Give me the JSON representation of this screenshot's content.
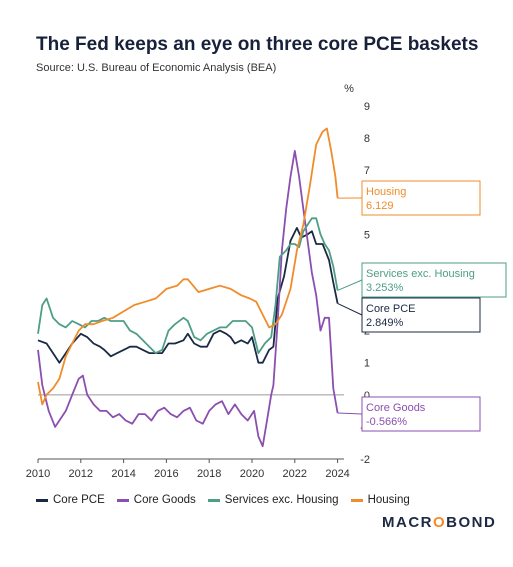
{
  "title": "The Fed keeps an eye on three core PCE baskets",
  "subtitle": "Source: U.S. Bureau of Economic Analysis (BEA)",
  "brand": {
    "pre": "MACR",
    "o": "O",
    "post": "BOND"
  },
  "colors": {
    "core_pce": "#1b2a44",
    "core_goods": "#8a4fb0",
    "services_ex_housing": "#4e9e86",
    "housing": "#f08c2a"
  },
  "chart_data": {
    "type": "line",
    "xlabel": "",
    "ylabel": "%",
    "xlim": [
      2010,
      2024.3
    ],
    "ylim": [
      -2,
      9
    ],
    "xticks": [
      2010,
      2012,
      2014,
      2016,
      2018,
      2020,
      2022,
      2024
    ],
    "yticks": [
      -2,
      -1,
      0,
      1,
      2,
      3,
      4,
      5,
      6,
      7,
      8,
      9
    ],
    "grid": false,
    "legend_position": "bottom",
    "series": [
      {
        "name": "Core PCE",
        "color_key": "core_pce",
        "end_label": "Core PCE",
        "end_value": "2.849%",
        "points": [
          [
            2010.0,
            1.7
          ],
          [
            2010.4,
            1.6
          ],
          [
            2010.8,
            1.2
          ],
          [
            2011.0,
            1.0
          ],
          [
            2011.3,
            1.3
          ],
          [
            2011.6,
            1.6
          ],
          [
            2012.0,
            1.9
          ],
          [
            2012.3,
            1.8
          ],
          [
            2012.6,
            1.6
          ],
          [
            2012.9,
            1.5
          ],
          [
            2013.1,
            1.4
          ],
          [
            2013.4,
            1.2
          ],
          [
            2013.7,
            1.3
          ],
          [
            2014.0,
            1.4
          ],
          [
            2014.3,
            1.5
          ],
          [
            2014.6,
            1.5
          ],
          [
            2014.9,
            1.4
          ],
          [
            2015.2,
            1.3
          ],
          [
            2015.5,
            1.3
          ],
          [
            2015.8,
            1.3
          ],
          [
            2016.1,
            1.6
          ],
          [
            2016.4,
            1.6
          ],
          [
            2016.8,
            1.7
          ],
          [
            2017.0,
            1.9
          ],
          [
            2017.3,
            1.6
          ],
          [
            2017.6,
            1.5
          ],
          [
            2017.9,
            1.5
          ],
          [
            2018.2,
            1.9
          ],
          [
            2018.5,
            2.0
          ],
          [
            2018.8,
            1.9
          ],
          [
            2019.0,
            1.8
          ],
          [
            2019.2,
            1.6
          ],
          [
            2019.5,
            1.7
          ],
          [
            2019.8,
            1.6
          ],
          [
            2020.0,
            1.8
          ],
          [
            2020.3,
            1.0
          ],
          [
            2020.5,
            1.0
          ],
          [
            2020.8,
            1.4
          ],
          [
            2021.0,
            1.5
          ],
          [
            2021.2,
            3.0
          ],
          [
            2021.5,
            3.7
          ],
          [
            2021.8,
            4.8
          ],
          [
            2022.1,
            5.2
          ],
          [
            2022.3,
            4.9
          ],
          [
            2022.6,
            5.0
          ],
          [
            2022.8,
            5.1
          ],
          [
            2023.0,
            4.7
          ],
          [
            2023.3,
            4.7
          ],
          [
            2023.6,
            4.2
          ],
          [
            2023.8,
            3.5
          ],
          [
            2024.0,
            2.849
          ]
        ]
      },
      {
        "name": "Core Goods",
        "color_key": "core_goods",
        "end_label": "Core Goods",
        "end_value": "-0.566%",
        "points": [
          [
            2010.0,
            1.4
          ],
          [
            2010.2,
            0.3
          ],
          [
            2010.5,
            -0.5
          ],
          [
            2010.8,
            -1.0
          ],
          [
            2011.0,
            -0.8
          ],
          [
            2011.3,
            -0.5
          ],
          [
            2011.6,
            0.0
          ],
          [
            2011.9,
            0.5
          ],
          [
            2012.1,
            0.6
          ],
          [
            2012.3,
            0.0
          ],
          [
            2012.6,
            -0.3
          ],
          [
            2012.9,
            -0.5
          ],
          [
            2013.2,
            -0.5
          ],
          [
            2013.5,
            -0.7
          ],
          [
            2013.8,
            -0.6
          ],
          [
            2014.1,
            -0.8
          ],
          [
            2014.4,
            -0.9
          ],
          [
            2014.7,
            -0.6
          ],
          [
            2015.0,
            -0.6
          ],
          [
            2015.3,
            -0.8
          ],
          [
            2015.6,
            -0.5
          ],
          [
            2015.9,
            -0.4
          ],
          [
            2016.2,
            -0.6
          ],
          [
            2016.5,
            -0.7
          ],
          [
            2016.8,
            -0.5
          ],
          [
            2017.1,
            -0.4
          ],
          [
            2017.4,
            -0.8
          ],
          [
            2017.7,
            -0.9
          ],
          [
            2018.0,
            -0.5
          ],
          [
            2018.3,
            -0.3
          ],
          [
            2018.6,
            -0.2
          ],
          [
            2018.9,
            -0.6
          ],
          [
            2019.2,
            -0.3
          ],
          [
            2019.5,
            -0.6
          ],
          [
            2019.8,
            -0.8
          ],
          [
            2020.1,
            -0.5
          ],
          [
            2020.3,
            -1.3
          ],
          [
            2020.5,
            -1.6
          ],
          [
            2020.7,
            -0.8
          ],
          [
            2020.9,
            0.0
          ],
          [
            2021.0,
            0.3
          ],
          [
            2021.2,
            2.3
          ],
          [
            2021.4,
            4.5
          ],
          [
            2021.6,
            5.8
          ],
          [
            2021.8,
            6.8
          ],
          [
            2022.0,
            7.6
          ],
          [
            2022.2,
            6.8
          ],
          [
            2022.4,
            5.8
          ],
          [
            2022.6,
            4.8
          ],
          [
            2022.8,
            3.8
          ],
          [
            2023.0,
            3.1
          ],
          [
            2023.2,
            2.0
          ],
          [
            2023.4,
            2.4
          ],
          [
            2023.6,
            2.4
          ],
          [
            2023.8,
            0.2
          ],
          [
            2024.0,
            -0.566
          ]
        ]
      },
      {
        "name": "Services exc. Housing",
        "color_key": "services_ex_housing",
        "end_label": "Services exc. Housing",
        "end_value": "3.253%",
        "points": [
          [
            2010.0,
            1.9
          ],
          [
            2010.2,
            2.8
          ],
          [
            2010.4,
            3.0
          ],
          [
            2010.7,
            2.4
          ],
          [
            2011.0,
            2.2
          ],
          [
            2011.3,
            2.1
          ],
          [
            2011.6,
            2.3
          ],
          [
            2011.9,
            2.2
          ],
          [
            2012.2,
            2.1
          ],
          [
            2012.5,
            2.3
          ],
          [
            2012.8,
            2.3
          ],
          [
            2013.1,
            2.4
          ],
          [
            2013.4,
            2.3
          ],
          [
            2013.7,
            2.3
          ],
          [
            2014.0,
            2.3
          ],
          [
            2014.3,
            2.0
          ],
          [
            2014.6,
            1.9
          ],
          [
            2014.9,
            1.7
          ],
          [
            2015.2,
            1.5
          ],
          [
            2015.5,
            1.3
          ],
          [
            2015.8,
            1.4
          ],
          [
            2016.1,
            2.0
          ],
          [
            2016.4,
            2.2
          ],
          [
            2016.8,
            2.4
          ],
          [
            2017.0,
            2.3
          ],
          [
            2017.3,
            1.8
          ],
          [
            2017.6,
            1.7
          ],
          [
            2017.9,
            1.9
          ],
          [
            2018.2,
            2.0
          ],
          [
            2018.5,
            2.1
          ],
          [
            2018.8,
            2.1
          ],
          [
            2019.1,
            2.3
          ],
          [
            2019.4,
            2.3
          ],
          [
            2019.7,
            2.3
          ],
          [
            2020.0,
            2.1
          ],
          [
            2020.3,
            1.3
          ],
          [
            2020.6,
            1.6
          ],
          [
            2020.9,
            1.8
          ],
          [
            2021.1,
            2.8
          ],
          [
            2021.3,
            4.3
          ],
          [
            2021.6,
            4.5
          ],
          [
            2021.8,
            4.7
          ],
          [
            2022.0,
            4.7
          ],
          [
            2022.2,
            4.6
          ],
          [
            2022.4,
            5.1
          ],
          [
            2022.6,
            5.3
          ],
          [
            2022.8,
            5.5
          ],
          [
            2023.0,
            5.5
          ],
          [
            2023.2,
            5.0
          ],
          [
            2023.4,
            4.7
          ],
          [
            2023.6,
            4.5
          ],
          [
            2023.8,
            4.0
          ],
          [
            2024.0,
            3.253
          ]
        ]
      },
      {
        "name": "Housing",
        "color_key": "housing",
        "end_label": "Housing",
        "end_value": "6.129",
        "points": [
          [
            2010.0,
            0.4
          ],
          [
            2010.2,
            -0.3
          ],
          [
            2010.4,
            0.0
          ],
          [
            2010.7,
            0.2
          ],
          [
            2011.0,
            0.5
          ],
          [
            2011.3,
            1.2
          ],
          [
            2011.6,
            1.6
          ],
          [
            2011.9,
            2.0
          ],
          [
            2012.2,
            2.2
          ],
          [
            2012.6,
            2.2
          ],
          [
            2013.0,
            2.3
          ],
          [
            2013.5,
            2.4
          ],
          [
            2014.0,
            2.6
          ],
          [
            2014.5,
            2.8
          ],
          [
            2015.0,
            2.9
          ],
          [
            2015.5,
            3.0
          ],
          [
            2016.0,
            3.3
          ],
          [
            2016.5,
            3.4
          ],
          [
            2016.8,
            3.6
          ],
          [
            2017.0,
            3.6
          ],
          [
            2017.5,
            3.2
          ],
          [
            2018.0,
            3.3
          ],
          [
            2018.5,
            3.4
          ],
          [
            2019.0,
            3.3
          ],
          [
            2019.5,
            3.1
          ],
          [
            2019.9,
            3.0
          ],
          [
            2020.2,
            2.9
          ],
          [
            2020.5,
            2.5
          ],
          [
            2020.8,
            2.1
          ],
          [
            2021.1,
            2.2
          ],
          [
            2021.4,
            2.5
          ],
          [
            2021.8,
            3.3
          ],
          [
            2022.1,
            4.5
          ],
          [
            2022.4,
            5.3
          ],
          [
            2022.7,
            6.5
          ],
          [
            2023.0,
            7.8
          ],
          [
            2023.3,
            8.2
          ],
          [
            2023.5,
            8.3
          ],
          [
            2023.7,
            7.6
          ],
          [
            2023.9,
            6.8
          ],
          [
            2024.0,
            6.129
          ]
        ]
      }
    ]
  }
}
